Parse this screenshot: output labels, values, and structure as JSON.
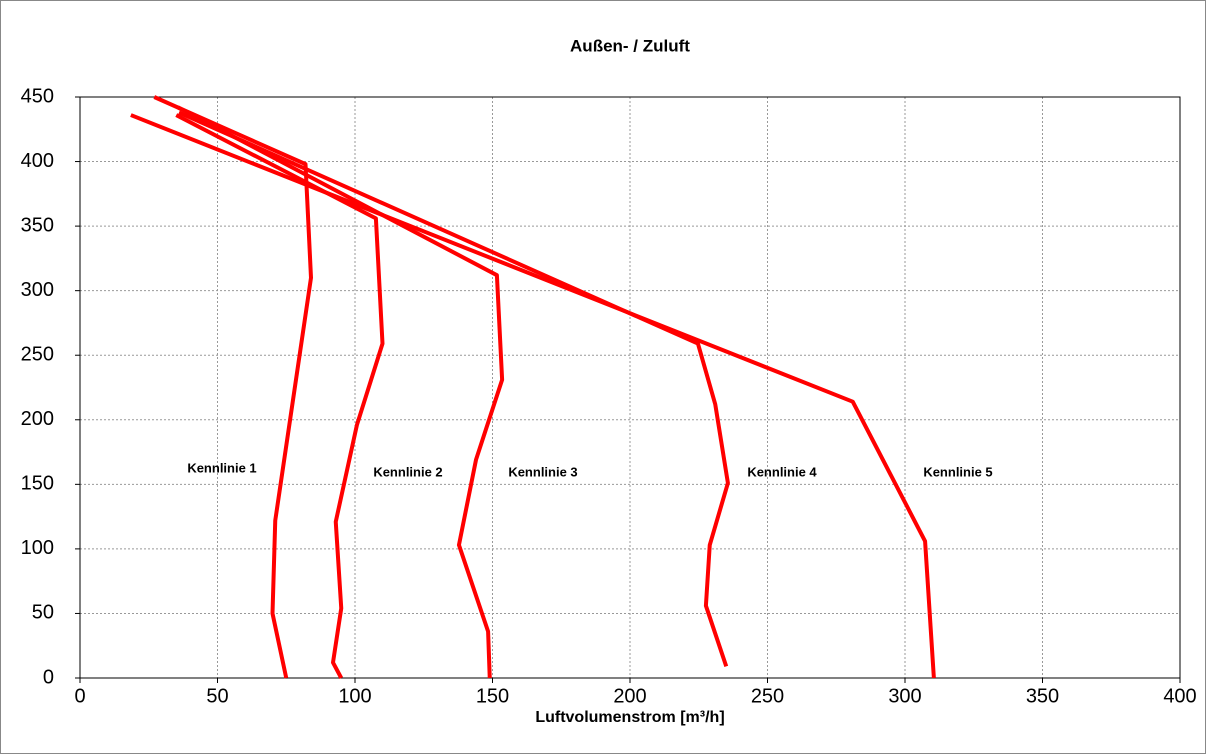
{
  "chart_data": {
    "type": "line",
    "title": "Außen- / Zuluft",
    "xlabel": "Luftvolumenstrom [m³/h]",
    "xlim": [
      0,
      400
    ],
    "xticks": [
      0,
      50,
      100,
      150,
      200,
      250,
      300,
      350,
      400
    ],
    "ylim": [
      0,
      450
    ],
    "yticks": [
      0,
      50,
      100,
      150,
      200,
      250,
      300,
      350,
      400,
      450
    ],
    "grid": true,
    "series": [
      {
        "name": "Kennlinie 1",
        "color": "#ff0000",
        "x": [
          75,
          70,
          71,
          84,
          82,
          27
        ],
        "values": [
          0,
          50,
          122,
          310,
          398,
          450
        ]
      },
      {
        "name": "Kennlinie 2",
        "color": "#ff0000",
        "x": [
          95,
          92,
          95,
          93,
          100.7,
          110,
          107.6,
          35
        ],
        "values": [
          0,
          12,
          54,
          121,
          196,
          259,
          356,
          436
        ]
      },
      {
        "name": "Kennlinie 3",
        "color": "#ff0000",
        "x": [
          149,
          148.4,
          137.8,
          144,
          153.5,
          151.6,
          35.6
        ],
        "values": [
          0,
          36,
          103,
          169,
          231,
          312,
          442
        ]
      },
      {
        "name": "Kennlinie 4",
        "color": "#ff0000",
        "x": [
          235,
          227.6,
          229,
          235.6,
          231,
          224.7,
          36
        ],
        "values": [
          9,
          56,
          103,
          151,
          212,
          259,
          438
        ]
      },
      {
        "name": "Kennlinie 5",
        "color": "#ff0000",
        "x": [
          310.5,
          307.3,
          281,
          18.5
        ],
        "values": [
          0,
          106,
          214,
          436
        ]
      }
    ]
  }
}
